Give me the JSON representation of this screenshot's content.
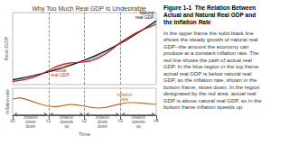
{
  "chart_data": [
    {
      "type": "line",
      "title": "Why Too Much Real GDP Is Undesirable",
      "ylabel": "Real GDP",
      "x": [
        0,
        0.5,
        1,
        1.5,
        2,
        2.5,
        3,
        3.5,
        4,
        4.5,
        5,
        5.5,
        6,
        6.5,
        7,
        7.5,
        8,
        8.5,
        9,
        9.5,
        10
      ],
      "series": [
        {
          "name": "Natural\nreal GDP",
          "color": "#111111",
          "values": [
            1.0,
            1.15,
            1.3,
            1.46,
            1.63,
            1.82,
            2.03,
            2.26,
            2.5,
            2.76,
            3.05,
            3.35,
            3.68,
            4.03,
            4.4,
            4.8,
            5.22,
            5.67,
            6.14,
            6.64,
            7.16
          ],
          "label_x": 9.85,
          "label_y": 7.2316
        },
        {
          "name": "Actual\nreal GDP",
          "color": "#cc2222",
          "values": [
            0.82,
            0.93,
            1.07,
            1.28,
            1.58,
            1.98,
            2.36,
            2.62,
            2.76,
            2.82,
            2.85,
            2.98,
            3.28,
            3.72,
            4.28,
            4.88,
            5.38,
            5.82,
            6.18,
            6.48,
            6.78
          ],
          "label_x": 3.3,
          "label_y": 1.75
        }
      ],
      "fill": [
        {
          "where": "below",
          "color": "#8899bb"
        },
        {
          "where": "above",
          "color": "#dd9999"
        }
      ],
      "vlines": [
        2.5,
        5.0,
        7.5
      ],
      "vline_color": "#777777",
      "xlim": [
        0,
        10
      ],
      "ylim": [
        0.5,
        8.0
      ],
      "tick_labels": false,
      "grid": false
    },
    {
      "type": "line",
      "xlabel": "Time",
      "ylabel": "Inflation rate",
      "x": [
        0,
        0.5,
        1,
        1.5,
        2,
        2.5,
        3,
        3.5,
        4,
        4.5,
        5,
        5.5,
        6,
        6.5,
        7,
        7.5,
        8,
        8.5,
        9,
        9.5,
        10
      ],
      "series": [
        {
          "name": "Inflation\nrate",
          "color": "#b87020",
          "values": [
            0.62,
            0.64,
            0.61,
            0.57,
            0.53,
            0.5,
            0.49,
            0.51,
            0.53,
            0.52,
            0.5,
            0.48,
            0.47,
            0.48,
            0.51,
            0.54,
            0.56,
            0.56,
            0.55,
            0.54,
            0.53
          ],
          "label_x": 7.8,
          "label_y": 0.575
        }
      ],
      "vlines": [
        2.5,
        5.0,
        7.5
      ],
      "vline_color": "#777777",
      "arrows": [
        {
          "x": [
            0.08,
            2.42
          ],
          "y": 0.36
        },
        {
          "x": [
            2.58,
            4.92
          ],
          "y": 0.36
        },
        {
          "x": [
            5.08,
            7.42
          ],
          "y": 0.36
        },
        {
          "x": [
            7.58,
            9.92
          ],
          "y": 0.36
        }
      ],
      "annotations": [
        {
          "text": "Inflation\nslows\ndown",
          "x": 1.25,
          "y": 0.345
        },
        {
          "text": "Inflation\nspeeds\nup",
          "x": 3.75,
          "y": 0.345
        },
        {
          "text": "Inflation\nslows\ndown",
          "x": 6.25,
          "y": 0.345
        },
        {
          "text": "Inflation\nspeeds\nup",
          "x": 8.75,
          "y": 0.345
        }
      ],
      "xlim": [
        0,
        10
      ],
      "ylim": [
        0.35,
        0.8
      ],
      "xticks": [
        {
          "value": 0,
          "label": "t0"
        },
        {
          "value": 2.5,
          "label": "t1"
        },
        {
          "value": 5.0,
          "label": "t2"
        },
        {
          "value": 7.5,
          "label": "t3"
        },
        {
          "value": 10,
          "label": "t4"
        }
      ],
      "tick_labels": "x",
      "grid": false
    }
  ],
  "caption": {
    "title": "Figure 1-1  The Relation Between\nActual and Natural Real GDP and\nthe Inflation Rate",
    "body": "In the upper frame the solid black line\nshows the steady growth of natural real\nGDP--the amount the economy can\nproduce at a constant inflation rate. The\nred line shows the path of actual real\nGDP. In the blue region in the top frame\nactual real GDP is below natural real\nGDP, so the inflation rate, shown in the\nbottom frame, slows down. In the region\ndesignated by the red area, actual real\nGDP is above natural real GDP, so in the\nbottom frame inflation speeds up."
  }
}
